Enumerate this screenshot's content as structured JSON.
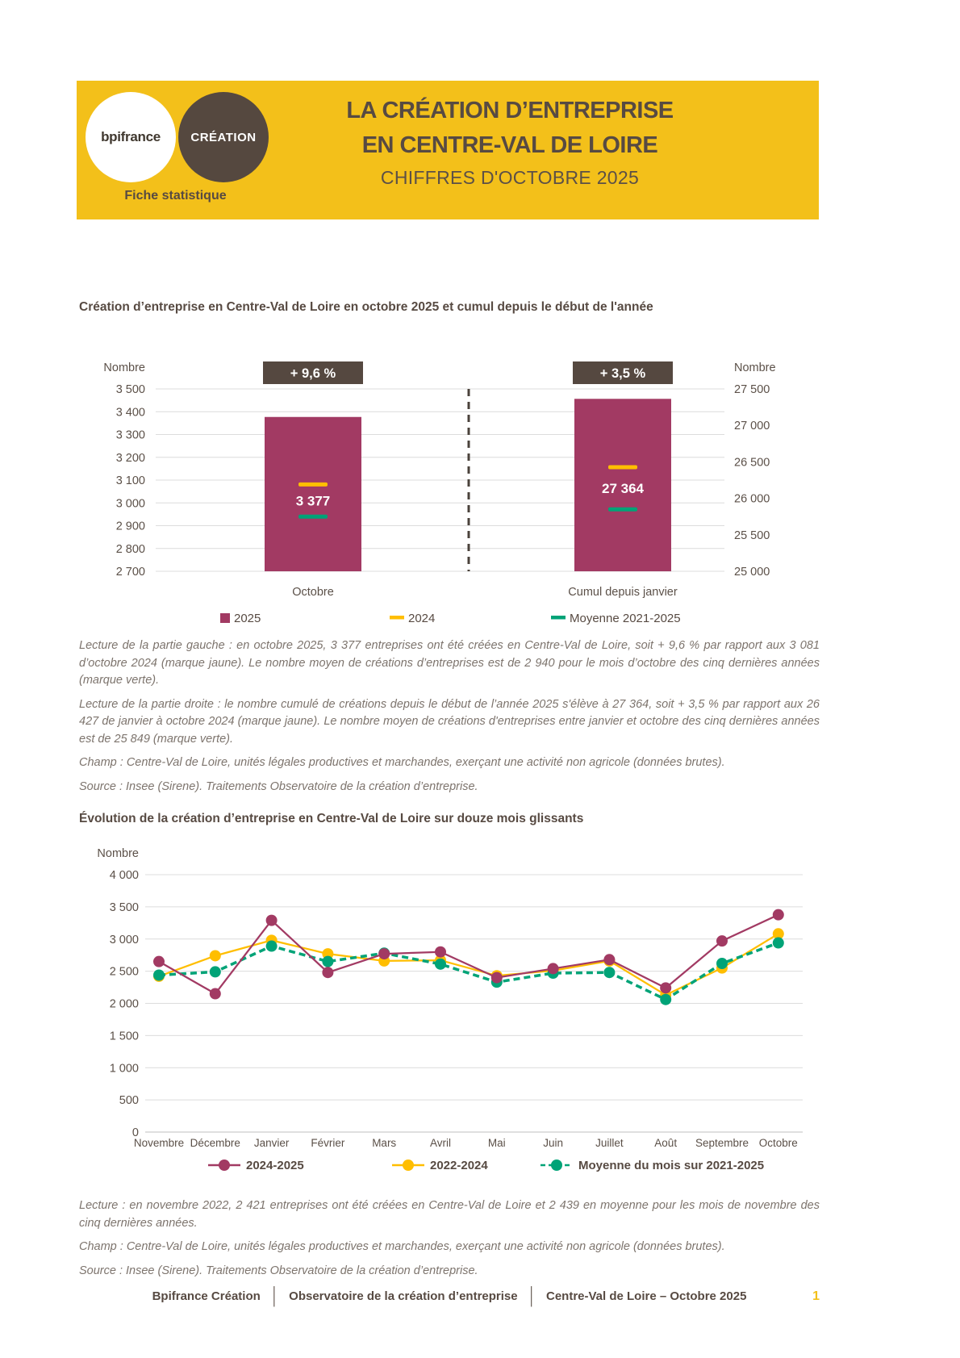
{
  "header": {
    "logo_primary": "bpifrance",
    "logo_secondary": "CRÉATION",
    "tagline": "Fiche statistique",
    "title_line1": "LA CRÉATION D’ENTREPRISE",
    "title_line2": "EN CENTRE-VAL DE LOIRE",
    "subtitle": "CHIFFRES D'OCTOBRE 2025"
  },
  "colors": {
    "brand_yellow": "#F3C01A",
    "brown": "#574A42",
    "badge_brown": "#554840",
    "magenta": "#A23A63",
    "accent_yellow": "#FFBE00",
    "green": "#00A377",
    "grid": "#DCDCDC",
    "axis_text": "#5B5048",
    "lecture_text": "#7D746D"
  },
  "section1": {
    "title": "Création d’entreprise en Centre-Val de Loire en octobre 2025 et cumul depuis le début de l'année",
    "lecture_left": "Lecture de la partie gauche : en octobre 2025, 3 377 entreprises ont été créées en Centre-Val de Loire, soit + 9,6 % par rapport aux 3 081 d’octobre 2024 (marque jaune). Le nombre moyen de créations d’entreprises est de 2 940 pour le mois d’octobre des cinq dernières années (marque verte).",
    "lecture_right": "Lecture de la partie droite : le nombre cumulé de créations depuis le début de l’année 2025 s'élève à 27 364, soit + 3,5 % par rapport aux 26 427 de janvier à octobre 2024 (marque jaune). Le nombre moyen de créations d'entreprises entre janvier et octobre des cinq dernières années est de 25 849 (marque verte).",
    "champ": "Champ : Centre-Val de Loire, unités légales productives et marchandes, exerçant une activité non agricole (données brutes).",
    "source": "Source : Insee (Sirene). Traitements Observatoire de la création d’entreprise."
  },
  "section2": {
    "title": "Évolution de la création d’entreprise en Centre-Val de Loire sur douze mois glissants",
    "lecture": "Lecture : en novembre 2022, 2 421 entreprises ont été créées en Centre-Val de Loire et 2 439 en moyenne pour les mois de novembre des cinq dernières années.",
    "champ": "Champ : Centre-Val de Loire, unités légales productives et marchandes, exerçant une activité non agricole (données brutes).",
    "source": "Source : Insee (Sirene). Traitements Observatoire de la création d’entreprise."
  },
  "footer": {
    "items": [
      "Bpifrance Création",
      "Observatoire de la création d’entreprise",
      "Centre-Val de Loire – Octobre 2025"
    ],
    "separator": "│",
    "page_number": "1"
  },
  "chart_data": [
    {
      "type": "bar",
      "title": "Création d’entreprise en Centre-Val de Loire en octobre 2025 et cumul depuis le début de l'année",
      "unit_label_left": "Nombre",
      "unit_label_right": "Nombre",
      "groups": [
        {
          "category": "Octobre",
          "change_label": "+ 9,6 %",
          "value": 3377,
          "value_label": "3 377",
          "ref_2024": 3081,
          "ref_moyenne": 2940,
          "axis": "left"
        },
        {
          "category": "Cumul depuis janvier",
          "change_label": "+ 3,5 %",
          "value": 27364,
          "value_label": "27 364",
          "ref_2024": 26427,
          "ref_moyenne": 25849,
          "axis": "right"
        }
      ],
      "axes": {
        "left": {
          "min": 2700,
          "max": 3500,
          "step": 100
        },
        "right": {
          "min": 25000,
          "max": 27500,
          "step": 500
        }
      },
      "legend": [
        {
          "label": "2025",
          "marker": "square",
          "color_key": "magenta"
        },
        {
          "label": "2024",
          "marker": "dash",
          "color_key": "accent_yellow"
        },
        {
          "label": "Moyenne 2021-2025",
          "marker": "dash",
          "color_key": "green"
        }
      ],
      "grid": true
    },
    {
      "type": "line",
      "title": "Évolution de la création d’entreprise en Centre-Val de Loire sur douze mois glissants",
      "unit_label": "Nombre",
      "categories": [
        "Novembre",
        "Décembre",
        "Janvier",
        "Février",
        "Mars",
        "Avril",
        "Mai",
        "Juin",
        "Juillet",
        "Août",
        "Septembre",
        "Octobre"
      ],
      "ylim": [
        0,
        4000
      ],
      "ystep": 500,
      "series": [
        {
          "name": "2024-2025",
          "color_key": "magenta",
          "dash": false,
          "values": [
            2650,
            2150,
            3290,
            2480,
            2770,
            2800,
            2400,
            2540,
            2680,
            2240,
            2970,
            3377
          ]
        },
        {
          "name": "2022-2024",
          "color_key": "accent_yellow",
          "dash": false,
          "values": [
            2421,
            2740,
            2980,
            2770,
            2660,
            2670,
            2430,
            2510,
            2660,
            2130,
            2550,
            3081
          ]
        },
        {
          "name": "Moyenne du mois sur 2021-2025",
          "color_key": "green",
          "dash": true,
          "values": [
            2439,
            2490,
            2890,
            2650,
            2780,
            2610,
            2330,
            2470,
            2480,
            2060,
            2620,
            2940
          ]
        }
      ],
      "legend_position": "bottom",
      "grid": true
    }
  ]
}
